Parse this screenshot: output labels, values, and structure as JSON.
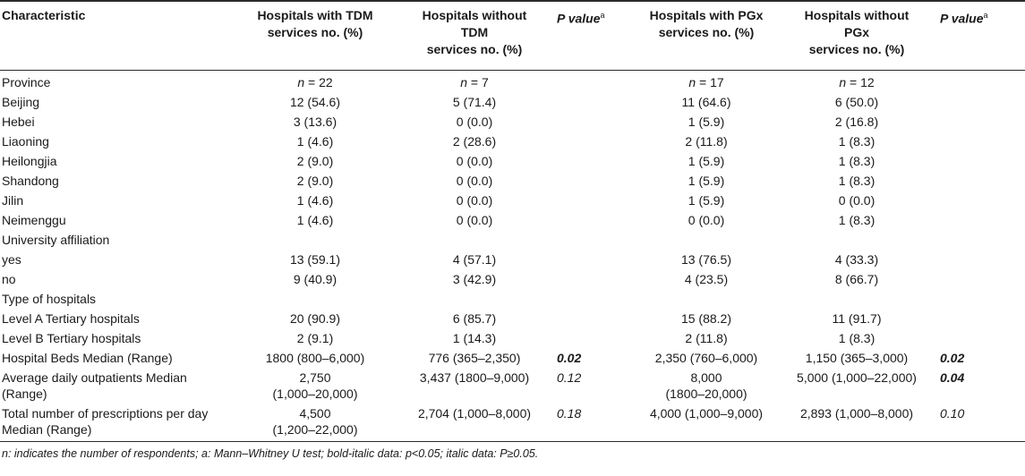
{
  "table": {
    "headers": [
      {
        "lines": [
          "Characteristic"
        ]
      },
      {
        "lines": [
          "Hospitals with TDM",
          "services no. (%)"
        ]
      },
      {
        "lines": [
          "Hospitals without",
          "TDM",
          "services no. (%)"
        ]
      },
      {
        "lines": [
          "P value"
        ],
        "sup": "a",
        "italic_p": true
      },
      {
        "lines": [
          "Hospitals with PGx",
          "services no. (%)"
        ]
      },
      {
        "lines": [
          "Hospitals without",
          "PGx",
          "services no. (%)"
        ]
      },
      {
        "lines": [
          "P value"
        ],
        "sup": "a",
        "italic_p": true
      }
    ],
    "rows": [
      {
        "label": "Province",
        "tdm_with": "n = 22",
        "tdm_without": "n = 7",
        "p1": "",
        "pgx_with": "n = 17",
        "pgx_without": "n = 12",
        "p2": "",
        "n_row": true
      },
      {
        "label": "Beijing",
        "tdm_with": "12 (54.6)",
        "tdm_without": "5 (71.4)",
        "p1": "",
        "pgx_with": "11 (64.6)",
        "pgx_without": "6 (50.0)",
        "p2": ""
      },
      {
        "label": "Hebei",
        "tdm_with": "3 (13.6)",
        "tdm_without": "0 (0.0)",
        "p1": "",
        "pgx_with": "1 (5.9)",
        "pgx_without": "2 (16.8)",
        "p2": ""
      },
      {
        "label": "Liaoning",
        "tdm_with": "1 (4.6)",
        "tdm_without": "2 (28.6)",
        "p1": "",
        "pgx_with": "2 (11.8)",
        "pgx_without": "1 (8.3)",
        "p2": ""
      },
      {
        "label": "Heilongjia",
        "tdm_with": "2 (9.0)",
        "tdm_without": "0 (0.0)",
        "p1": "",
        "pgx_with": "1 (5.9)",
        "pgx_without": "1 (8.3)",
        "p2": ""
      },
      {
        "label": "Shandong",
        "tdm_with": "2 (9.0)",
        "tdm_without": "0 (0.0)",
        "p1": "",
        "pgx_with": "1 (5.9)",
        "pgx_without": "1 (8.3)",
        "p2": ""
      },
      {
        "label": "Jilin",
        "tdm_with": "1 (4.6)",
        "tdm_without": "0 (0.0)",
        "p1": "",
        "pgx_with": "1 (5.9)",
        "pgx_without": "0 (0.0)",
        "p2": ""
      },
      {
        "label": "Neimenggu",
        "tdm_with": "1 (4.6)",
        "tdm_without": "0 (0.0)",
        "p1": "",
        "pgx_with": "0 (0.0)",
        "pgx_without": "1 (8.3)",
        "p2": ""
      },
      {
        "label": "University affiliation",
        "tdm_with": "",
        "tdm_without": "",
        "p1": "",
        "pgx_with": "",
        "pgx_without": "",
        "p2": ""
      },
      {
        "label": "yes",
        "tdm_with": "13 (59.1)",
        "tdm_without": "4 (57.1)",
        "p1": "",
        "pgx_with": "13 (76.5)",
        "pgx_without": "4 (33.3)",
        "p2": ""
      },
      {
        "label": "no",
        "tdm_with": "9 (40.9)",
        "tdm_without": "3 (42.9)",
        "p1": "",
        "pgx_with": "4 (23.5)",
        "pgx_without": "8 (66.7)",
        "p2": ""
      },
      {
        "label": "Type of hospitals",
        "tdm_with": "",
        "tdm_without": "",
        "p1": "",
        "pgx_with": "",
        "pgx_without": "",
        "p2": ""
      },
      {
        "label": "Level A Tertiary hospitals",
        "tdm_with": "20 (90.9)",
        "tdm_without": "6 (85.7)",
        "p1": "",
        "pgx_with": "15 (88.2)",
        "pgx_without": "11 (91.7)",
        "p2": ""
      },
      {
        "label": "Level B Tertiary hospitals",
        "tdm_with": "2 (9.1)",
        "tdm_without": "1 (14.3)",
        "p1": "",
        "pgx_with": "2 (11.8)",
        "pgx_without": "1 (8.3)",
        "p2": ""
      },
      {
        "label": "Hospital Beds Median (Range)",
        "tdm_with": "1800 (800–6,000)",
        "tdm_without": "776 (365–2,350)",
        "p1": "0.02",
        "p1_sig": true,
        "pgx_with": "2,350 (760–6,000)",
        "pgx_without": "1,150 (365–3,000)",
        "p2": "0.02",
        "p2_sig": true
      },
      {
        "label": "Average daily outpatients Median",
        "label2": "(Range)",
        "tdm_with": "2,750",
        "tdm_with2": "(1,000–20,000)",
        "tdm_without": "3,437 (1800–9,000)",
        "p1": "0.12",
        "pgx_with": "8,000",
        "pgx_with2": "(1800–20,000)",
        "pgx_without": "5,000 (1,000–22,000)",
        "p2": "0.04",
        "p2_sig": true
      },
      {
        "label": "Total number of prescriptions per day",
        "label2": "Median (Range)",
        "tdm_with": "4,500",
        "tdm_with2": "(1,200–22,000)",
        "tdm_without": "2,704 (1,000–8,000)",
        "p1": "0.18",
        "pgx_with": "4,000 (1,000–9,000)",
        "pgx_without": "2,893 (1,000–8,000)",
        "p2": "0.10"
      }
    ]
  },
  "footnote": "n: indicates the number of respondents; a: Mann–Whitney U test; bold-italic data: p<0.05; italic data: P≥0.05."
}
